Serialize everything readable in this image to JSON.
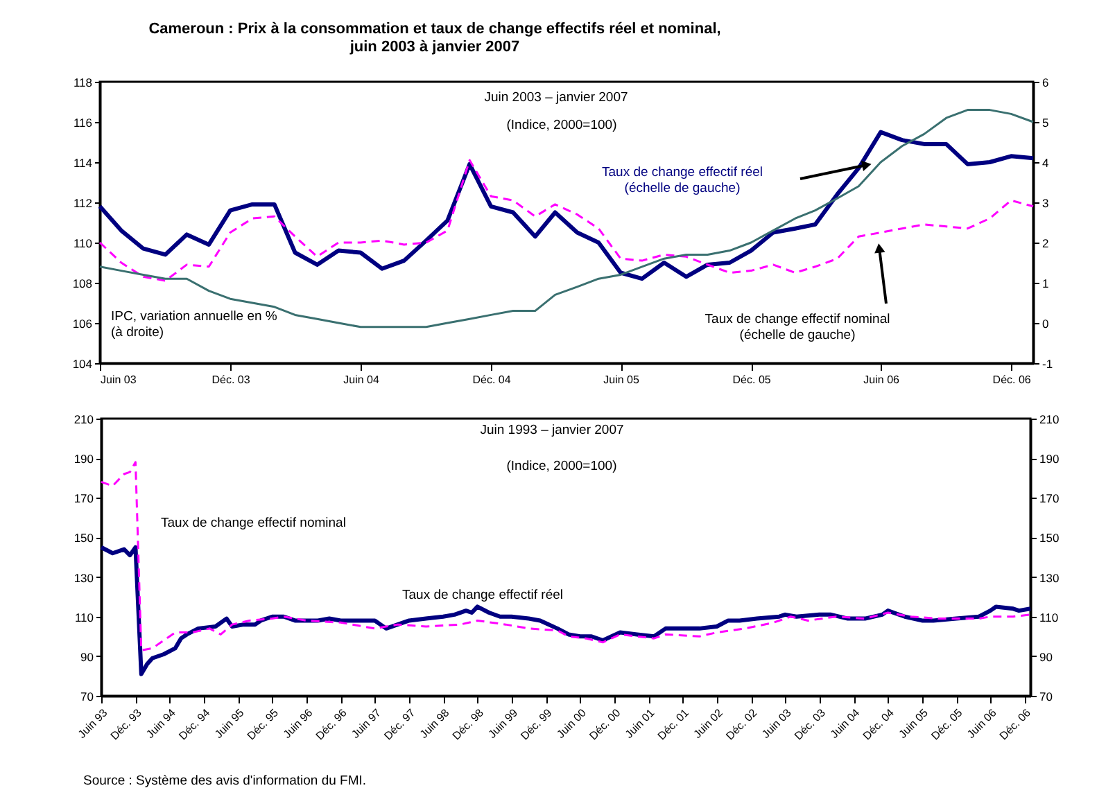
{
  "chart_data": [
    {
      "type": "line",
      "title": "Cameroun : Prix à la consommation et taux de change effectifs réel et nominal,\njuin 2003 à janvier 2007",
      "annotations": [
        "Juin 2003 – janvier 2007",
        "(Indice, 2000=100)"
      ],
      "x": [
        "2003-06",
        "2003-07",
        "2003-08",
        "2003-09",
        "2003-10",
        "2003-11",
        "2003-12",
        "2004-01",
        "2004-02",
        "2004-03",
        "2004-04",
        "2004-05",
        "2004-06",
        "2004-07",
        "2004-08",
        "2004-09",
        "2004-10",
        "2004-11",
        "2004-12",
        "2005-01",
        "2005-02",
        "2005-03",
        "2005-04",
        "2005-05",
        "2005-06",
        "2005-07",
        "2005-08",
        "2005-09",
        "2005-10",
        "2005-11",
        "2005-12",
        "2006-01",
        "2006-02",
        "2006-03",
        "2006-04",
        "2006-05",
        "2006-06",
        "2006-07",
        "2006-08",
        "2006-09",
        "2006-10",
        "2006-11",
        "2006-12",
        "2007-01"
      ],
      "series": [
        {
          "name": "Taux de change effectif réel\n(échelle de gauche)",
          "color": "#000080",
          "values": [
            111.8,
            110.6,
            109.7,
            109.4,
            110.4,
            109.9,
            111.6,
            111.9,
            111.9,
            109.5,
            108.9,
            109.6,
            109.5,
            108.7,
            109.1,
            110.1,
            111.1,
            113.9,
            111.8,
            111.5,
            110.3,
            111.5,
            110.5,
            110.0,
            108.5,
            108.2,
            109.0,
            108.3,
            108.9,
            109.0,
            109.6,
            110.5,
            110.7,
            110.9,
            112.4,
            113.7,
            115.5,
            115.1,
            114.9,
            114.9,
            113.9,
            114.0,
            114.3,
            114.2
          ]
        },
        {
          "name": "Taux de change effectif nominal\n(échelle de gauche)",
          "color": "#ff00ff",
          "line_style": "dashed",
          "values": [
            110.0,
            109.0,
            108.3,
            108.1,
            108.9,
            108.8,
            110.5,
            111.2,
            111.3,
            110.3,
            109.3,
            110.0,
            110.0,
            110.1,
            109.9,
            110.0,
            110.6,
            114.1,
            112.3,
            112.1,
            111.3,
            111.9,
            111.4,
            110.7,
            109.2,
            109.1,
            109.4,
            109.3,
            108.9,
            108.5,
            108.6,
            108.9,
            108.5,
            108.8,
            109.2,
            110.3,
            110.5,
            110.7,
            110.9,
            110.8,
            110.7,
            111.2,
            112.1,
            111.8
          ]
        },
        {
          "name": "IPC, variation annuelle en %\n(à droite)",
          "color": "#3a7070",
          "axis": "y2",
          "values": [
            1.4,
            1.3,
            1.2,
            1.1,
            1.1,
            0.8,
            0.6,
            0.5,
            0.4,
            0.2,
            0.1,
            0.0,
            -0.1,
            -0.1,
            -0.1,
            -0.1,
            0.0,
            0.1,
            0.2,
            0.3,
            0.3,
            0.7,
            0.9,
            1.1,
            1.2,
            1.4,
            1.6,
            1.7,
            1.7,
            1.8,
            2.0,
            2.3,
            2.6,
            2.8,
            3.1,
            3.4,
            4.0,
            4.4,
            4.7,
            5.1,
            5.3,
            5.3,
            5.2,
            5.0
          ]
        }
      ],
      "xlim": [
        "2003-06",
        "2007-01"
      ],
      "xticks": [
        {
          "value": "2003-06",
          "label": "Juin 03"
        },
        {
          "value": "2003-12",
          "label": "Déc. 03"
        },
        {
          "value": "2004-06",
          "label": "Juin 04"
        },
        {
          "value": "2004-12",
          "label": "Déc. 04"
        },
        {
          "value": "2005-06",
          "label": "Juin 05"
        },
        {
          "value": "2005-12",
          "label": "Déc. 05"
        },
        {
          "value": "2006-06",
          "label": "Juin 06"
        },
        {
          "value": "2006-12",
          "label": "Déc. 06"
        }
      ],
      "ylim": [
        104,
        118
      ],
      "yticks": [
        104,
        106,
        108,
        110,
        112,
        114,
        116,
        118
      ],
      "y2lim": [
        -1,
        6
      ],
      "y2ticks": [
        -1,
        0,
        1,
        2,
        3,
        4,
        5,
        6
      ]
    },
    {
      "type": "line",
      "annotations": [
        "Juin 1993 – janvier 2007",
        "(Indice, 2000=100)",
        "Source : Système des avis d'information du FMI."
      ],
      "series": [
        {
          "name": "Taux de change effectif réel",
          "color": "#000080",
          "x": [
            "1993-06",
            "1993-08",
            "1993-10",
            "1993-11",
            "1993-12",
            "1994-01",
            "1994-02",
            "1994-03",
            "1994-05",
            "1994-07",
            "1994-08",
            "1994-09",
            "1994-11",
            "1995-02",
            "1995-04",
            "1995-05",
            "1995-07",
            "1995-09",
            "1995-10",
            "1995-12",
            "1996-02",
            "1996-04",
            "1996-06",
            "1996-08",
            "1996-10",
            "1996-12",
            "1997-03",
            "1997-06",
            "1997-08",
            "1997-10",
            "1997-12",
            "1998-03",
            "1998-06",
            "1998-08",
            "1998-10",
            "1998-11",
            "1998-12",
            "1999-02",
            "1999-04",
            "1999-06",
            "1999-09",
            "1999-11",
            "2000-02",
            "2000-04",
            "2000-06",
            "2000-08",
            "2000-10",
            "2001-01",
            "2001-04",
            "2001-07",
            "2001-09",
            "2001-12",
            "2002-03",
            "2002-06",
            "2002-08",
            "2002-10",
            "2003-01",
            "2003-05",
            "2003-06",
            "2003-08",
            "2003-12",
            "2004-02",
            "2004-05",
            "2004-08",
            "2004-11",
            "2004-12",
            "2005-03",
            "2005-06",
            "2005-08",
            "2005-12",
            "2006-04",
            "2006-06",
            "2006-07",
            "2006-10",
            "2006-11",
            "2007-01"
          ],
          "values": [
            145,
            142,
            144,
            141,
            145,
            81,
            86,
            89,
            91,
            94,
            99,
            101,
            104,
            105,
            109,
            105,
            106,
            106,
            108,
            110,
            110,
            108,
            108,
            108,
            109,
            108,
            108,
            108,
            104,
            106,
            108,
            109,
            110,
            111,
            113,
            112,
            115,
            112,
            110,
            110,
            109,
            108,
            104,
            101,
            100,
            100,
            98,
            102,
            101,
            100,
            104,
            104,
            104,
            105,
            108,
            108,
            109,
            110,
            111,
            110,
            111,
            111,
            109,
            109,
            111,
            113,
            110,
            108,
            108,
            109,
            110,
            113,
            115,
            114,
            113,
            114
          ]
        },
        {
          "name": "Taux de change effectif nominal",
          "color": "#ff00ff",
          "line_style": "dashed",
          "x": [
            "1993-06",
            "1993-08",
            "1993-10",
            "1993-11",
            "1993-12",
            "1994-01",
            "1994-03",
            "1994-07",
            "1994-10",
            "1995-01",
            "1995-03",
            "1995-05",
            "1995-08",
            "1995-12",
            "1996-02",
            "1996-06",
            "1996-12",
            "1997-06",
            "1997-10",
            "1998-03",
            "1998-09",
            "1998-12",
            "1999-05",
            "1999-09",
            "2000-02",
            "2000-04",
            "2000-07",
            "2000-10",
            "2001-01",
            "2001-07",
            "2001-09",
            "2002-03",
            "2002-06",
            "2002-11",
            "2003-04",
            "2003-07",
            "2003-10",
            "2004-03",
            "2004-08",
            "2004-12",
            "2005-04",
            "2005-09",
            "2006-04",
            "2006-06",
            "2006-10",
            "2007-01"
          ],
          "values": [
            178,
            176,
            182,
            183,
            188,
            93,
            94,
            102,
            102,
            104,
            101,
            106,
            108,
            109,
            110,
            108,
            107,
            104,
            106,
            105,
            106,
            108,
            106,
            104,
            103,
            100,
            99,
            97,
            101,
            99,
            101,
            100,
            102,
            104,
            107,
            110,
            108,
            110,
            109,
            112,
            110,
            109,
            109,
            110,
            110,
            111
          ]
        }
      ],
      "xlim": [
        "1993-06",
        "2007-01"
      ],
      "xticks": [
        {
          "value": "1993-06",
          "label": "Juin 93"
        },
        {
          "value": "1993-12",
          "label": "Déc. 93"
        },
        {
          "value": "1994-06",
          "label": "Juin 94"
        },
        {
          "value": "1994-12",
          "label": "Déc. 94"
        },
        {
          "value": "1995-06",
          "label": "Juin 95"
        },
        {
          "value": "1995-12",
          "label": "Déc. 95"
        },
        {
          "value": "1996-06",
          "label": "Juin 96"
        },
        {
          "value": "1996-12",
          "label": "Déc. 96"
        },
        {
          "value": "1997-06",
          "label": "Juin 97"
        },
        {
          "value": "1997-12",
          "label": "Déc. 97"
        },
        {
          "value": "1998-06",
          "label": "Juin 98"
        },
        {
          "value": "1998-12",
          "label": "Déc. 98"
        },
        {
          "value": "1999-06",
          "label": "Juin 99"
        },
        {
          "value": "1999-12",
          "label": "Déc. 99"
        },
        {
          "value": "2000-06",
          "label": "Juin 00"
        },
        {
          "value": "2000-12",
          "label": "Déc. 00"
        },
        {
          "value": "2001-06",
          "label": "Juin 01"
        },
        {
          "value": "2001-12",
          "label": "Déc. 01"
        },
        {
          "value": "2002-06",
          "label": "Juin 02"
        },
        {
          "value": "2002-12",
          "label": "Déc. 02"
        },
        {
          "value": "2003-06",
          "label": "Juin 03"
        },
        {
          "value": "2003-12",
          "label": "Déc. 03"
        },
        {
          "value": "2004-06",
          "label": "Juin 04"
        },
        {
          "value": "2004-12",
          "label": "Déc. 04"
        },
        {
          "value": "2005-06",
          "label": "Juin 05"
        },
        {
          "value": "2005-12",
          "label": "Déc. 05"
        },
        {
          "value": "2006-06",
          "label": "Juin 06"
        },
        {
          "value": "2006-12",
          "label": "Déc. 06"
        }
      ],
      "ylim": [
        70,
        210
      ],
      "yticks": [
        70,
        90,
        110,
        130,
        150,
        170,
        190,
        210
      ],
      "y2lim": [
        70,
        210
      ],
      "y2ticks": [
        70,
        90,
        110,
        130,
        150,
        170,
        190,
        210
      ]
    }
  ]
}
